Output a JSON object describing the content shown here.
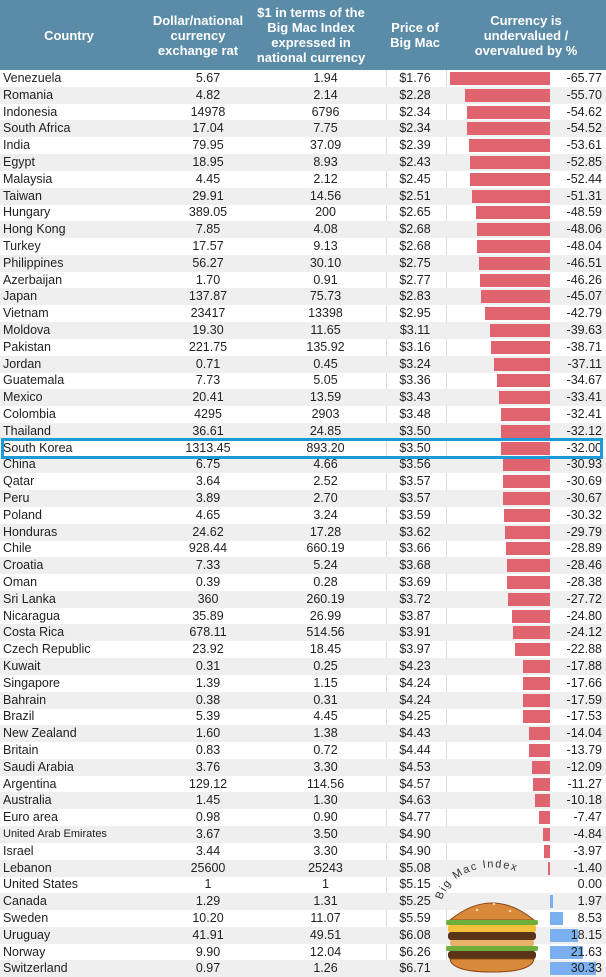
{
  "table": {
    "headers": {
      "country": "Country",
      "rate": "Dollar/national currency exchange rat",
      "ppp": "$1 in terms of the Big Mac Index expressed in national currency",
      "price": "Price of Big Mac",
      "value": "Currency is undervalued / overvalued by %"
    },
    "highlight": "South Korea"
  },
  "logo_text": "Big Mac Index",
  "colors": {
    "header": "#5a8ba7",
    "undervalued": "#e06470",
    "overvalued": "#7bb0f0",
    "highlight": "#1a9bd8"
  },
  "chart_data": {
    "type": "table",
    "columns": [
      "Country",
      "Dollar/national currency exchange rat",
      "$1 in terms of the Big Mac Index expressed in national currency",
      "Price of Big Mac",
      "Currency is undervalued / overvalued by %"
    ],
    "rows": [
      [
        "Venezuela",
        "5.67",
        "1.94",
        "$1.76",
        "-65.77"
      ],
      [
        "Romania",
        "4.82",
        "2.14",
        "$2.28",
        "-55.70"
      ],
      [
        "Indonesia",
        "14978",
        "6796",
        "$2.34",
        "-54.62"
      ],
      [
        "South Africa",
        "17.04",
        "7.75",
        "$2.34",
        "-54.52"
      ],
      [
        "India",
        "79.95",
        "37.09",
        "$2.39",
        "-53.61"
      ],
      [
        "Egypt",
        "18.95",
        "8.93",
        "$2.43",
        "-52.85"
      ],
      [
        "Malaysia",
        "4.45",
        "2.12",
        "$2.45",
        "-52.44"
      ],
      [
        "Taiwan",
        "29.91",
        "14.56",
        "$2.51",
        "-51.31"
      ],
      [
        "Hungary",
        "389.05",
        "200",
        "$2.65",
        "-48.59"
      ],
      [
        "Hong Kong",
        "7.85",
        "4.08",
        "$2.68",
        "-48.06"
      ],
      [
        "Turkey",
        "17.57",
        "9.13",
        "$2.68",
        "-48.04"
      ],
      [
        "Philippines",
        "56.27",
        "30.10",
        "$2.75",
        "-46.51"
      ],
      [
        "Azerbaijan",
        "1.70",
        "0.91",
        "$2.77",
        "-46.26"
      ],
      [
        "Japan",
        "137.87",
        "75.73",
        "$2.83",
        "-45.07"
      ],
      [
        "Vietnam",
        "23417",
        "13398",
        "$2.95",
        "-42.79"
      ],
      [
        "Moldova",
        "19.30",
        "11.65",
        "$3.11",
        "-39.63"
      ],
      [
        "Pakistan",
        "221.75",
        "135.92",
        "$3.16",
        "-38.71"
      ],
      [
        "Jordan",
        "0.71",
        "0.45",
        "$3.24",
        "-37.11"
      ],
      [
        "Guatemala",
        "7.73",
        "5.05",
        "$3.36",
        "-34.67"
      ],
      [
        "Mexico",
        "20.41",
        "13.59",
        "$3.43",
        "-33.41"
      ],
      [
        "Colombia",
        "4295",
        "2903",
        "$3.48",
        "-32.41"
      ],
      [
        "Thailand",
        "36.61",
        "24.85",
        "$3.50",
        "-32.12"
      ],
      [
        "South Korea",
        "1313.45",
        "893.20",
        "$3.50",
        "-32.00"
      ],
      [
        "China",
        "6.75",
        "4.66",
        "$3.56",
        "-30.93"
      ],
      [
        "Qatar",
        "3.64",
        "2.52",
        "$3.57",
        "-30.69"
      ],
      [
        "Peru",
        "3.89",
        "2.70",
        "$3.57",
        "-30.67"
      ],
      [
        "Poland",
        "4.65",
        "3.24",
        "$3.59",
        "-30.32"
      ],
      [
        "Honduras",
        "24.62",
        "17.28",
        "$3.62",
        "-29.79"
      ],
      [
        "Chile",
        "928.44",
        "660.19",
        "$3.66",
        "-28.89"
      ],
      [
        "Croatia",
        "7.33",
        "5.24",
        "$3.68",
        "-28.46"
      ],
      [
        "Oman",
        "0.39",
        "0.28",
        "$3.69",
        "-28.38"
      ],
      [
        "Sri Lanka",
        "360",
        "260.19",
        "$3.72",
        "-27.72"
      ],
      [
        "Nicaragua",
        "35.89",
        "26.99",
        "$3.87",
        "-24.80"
      ],
      [
        "Costa Rica",
        "678.11",
        "514.56",
        "$3.91",
        "-24.12"
      ],
      [
        "Czech Republic",
        "23.92",
        "18.45",
        "$3.97",
        "-22.88"
      ],
      [
        "Kuwait",
        "0.31",
        "0.25",
        "$4.23",
        "-17.88"
      ],
      [
        "Singapore",
        "1.39",
        "1.15",
        "$4.24",
        "-17.66"
      ],
      [
        "Bahrain",
        "0.38",
        "0.31",
        "$4.24",
        "-17.59"
      ],
      [
        "Brazil",
        "5.39",
        "4.45",
        "$4.25",
        "-17.53"
      ],
      [
        "New Zealand",
        "1.60",
        "1.38",
        "$4.43",
        "-14.04"
      ],
      [
        "Britain",
        "0.83",
        "0.72",
        "$4.44",
        "-13.79"
      ],
      [
        "Saudi Arabia",
        "3.76",
        "3.30",
        "$4.53",
        "-12.09"
      ],
      [
        "Argentina",
        "129.12",
        "114.56",
        "$4.57",
        "-11.27"
      ],
      [
        "Australia",
        "1.45",
        "1.30",
        "$4.63",
        "-10.18"
      ],
      [
        "Euro area",
        "0.98",
        "0.90",
        "$4.77",
        "-7.47"
      ],
      [
        "United Arab Emirates",
        "3.67",
        "3.50",
        "$4.90",
        "-4.84"
      ],
      [
        "Israel",
        "3.44",
        "3.30",
        "$4.90",
        "-3.97"
      ],
      [
        "Lebanon",
        "25600",
        "25243",
        "$5.08",
        "-1.40"
      ],
      [
        "United States",
        "1",
        "1",
        "$5.15",
        "0.00"
      ],
      [
        "Canada",
        "1.29",
        "1.31",
        "$5.25",
        "1.97"
      ],
      [
        "Sweden",
        "10.20",
        "11.07",
        "$5.59",
        "8.53"
      ],
      [
        "Uruguay",
        "41.91",
        "49.51",
        "$6.08",
        "18.15"
      ],
      [
        "Norway",
        "9.90",
        "12.04",
        "$6.26",
        "21.63"
      ],
      [
        "Switzerland",
        "0.97",
        "1.26",
        "$6.71",
        "30.33"
      ]
    ]
  }
}
